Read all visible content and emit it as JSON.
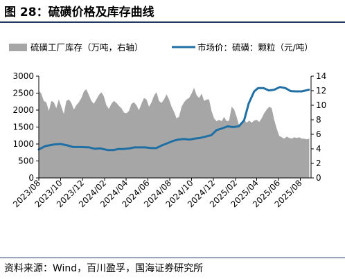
{
  "figure": {
    "title": "图 28：硫磺价格及库存曲线",
    "source": "资料来源：Wind，百川盈孚，国海证券研究所"
  },
  "colors": {
    "inventory_area": "#a6a6a6",
    "price_line": "#1f6fa4",
    "rule": "#1f3864"
  },
  "chart_data": {
    "type": "area",
    "legend_position": "top",
    "grid": false,
    "xlabel": "",
    "ylabel": "",
    "y_left": {
      "ylim": [
        0,
        3000
      ],
      "ticks": [
        "0",
        "500",
        "1000",
        "1500",
        "2000",
        "2500",
        "3000"
      ]
    },
    "y_right": {
      "ylim": [
        0,
        14
      ],
      "ticks": [
        "0",
        "2",
        "4",
        "6",
        "8",
        "10",
        "12",
        "14"
      ]
    },
    "x_range": [
      "2023-08-01",
      "2025-08-31"
    ],
    "x_tick_labels": [
      "2023/08",
      "2023/10",
      "2023/12",
      "2024/02",
      "2024/04",
      "2024/06",
      "2024/08",
      "2024/10",
      "2024/12",
      "2025/02",
      "2025/04",
      "2025/06",
      "2025/08"
    ],
    "series": [
      {
        "name": "硫磺工厂库存（万吨，右轴）",
        "type": "area",
        "axis": "right",
        "x": [
          "2023-08-01",
          "2023-08-08",
          "2023-08-15",
          "2023-08-22",
          "2023-08-29",
          "2023-09-05",
          "2023-09-12",
          "2023-09-19",
          "2023-09-26",
          "2023-10-03",
          "2023-10-10",
          "2023-10-17",
          "2023-10-24",
          "2023-10-31",
          "2023-11-07",
          "2023-11-14",
          "2023-11-21",
          "2023-11-28",
          "2023-12-05",
          "2023-12-12",
          "2023-12-19",
          "2023-12-26",
          "2024-01-02",
          "2024-01-09",
          "2024-01-16",
          "2024-01-23",
          "2024-01-30",
          "2024-02-06",
          "2024-02-13",
          "2024-02-20",
          "2024-02-27",
          "2024-03-05",
          "2024-03-12",
          "2024-03-19",
          "2024-03-26",
          "2024-04-02",
          "2024-04-09",
          "2024-04-16",
          "2024-04-23",
          "2024-04-30",
          "2024-05-07",
          "2024-05-14",
          "2024-05-21",
          "2024-05-28",
          "2024-06-04",
          "2024-06-11",
          "2024-06-18",
          "2024-06-25",
          "2024-07-02",
          "2024-07-09",
          "2024-07-16",
          "2024-07-23",
          "2024-07-30",
          "2024-08-06",
          "2024-08-13",
          "2024-08-20",
          "2024-08-27",
          "2024-09-03",
          "2024-09-10",
          "2024-09-17",
          "2024-09-24",
          "2024-10-01",
          "2024-10-08",
          "2024-10-15",
          "2024-10-22",
          "2024-10-29",
          "2024-11-05",
          "2024-11-12",
          "2024-11-19",
          "2024-11-26",
          "2024-12-03",
          "2024-12-10",
          "2024-12-17",
          "2024-12-24",
          "2024-12-31",
          "2025-01-07",
          "2025-01-14",
          "2025-01-21",
          "2025-01-28",
          "2025-02-04",
          "2025-02-11",
          "2025-02-18",
          "2025-02-25",
          "2025-03-04",
          "2025-03-11",
          "2025-03-18",
          "2025-03-25",
          "2025-04-01",
          "2025-04-08",
          "2025-04-15",
          "2025-04-22",
          "2025-04-29",
          "2025-05-06",
          "2025-05-13",
          "2025-05-20",
          "2025-05-27",
          "2025-06-03",
          "2025-06-10",
          "2025-06-17",
          "2025-06-24",
          "2025-07-01",
          "2025-07-08",
          "2025-07-15",
          "2025-07-22",
          "2025-07-29",
          "2025-08-05",
          "2025-08-12",
          "2025-08-19",
          "2025-08-26"
        ],
        "values": [
          12.0,
          11.6,
          10.6,
          10.4,
          9.2,
          10.6,
          10.4,
          9.6,
          10.8,
          9.8,
          8.8,
          10.6,
          10.8,
          10.3,
          9.4,
          10.0,
          10.4,
          11.0,
          11.9,
          12.2,
          11.4,
          10.6,
          10.2,
          10.8,
          11.4,
          11.8,
          11.2,
          10.0,
          9.5,
          10.2,
          10.6,
          10.3,
          9.9,
          9.6,
          9.0,
          8.9,
          9.2,
          10.2,
          10.4,
          10.0,
          9.3,
          10.2,
          11.0,
          10.8,
          9.8,
          10.4,
          11.3,
          11.8,
          10.6,
          10.3,
          10.8,
          11.5,
          10.8,
          9.8,
          9.1,
          8.2,
          8.4,
          9.8,
          10.4,
          10.8,
          11.0,
          11.6,
          12.4,
          11.4,
          11.0,
          11.6,
          10.6,
          10.8,
          10.8,
          9.2,
          8.2,
          7.8,
          8.0,
          7.8,
          8.4,
          7.8,
          7.9,
          9.8,
          9.4,
          8.4,
          7.2,
          7.4,
          8.0,
          7.6,
          7.9,
          7.6,
          7.9,
          8.0,
          7.7,
          8.2,
          8.9,
          9.4,
          9.8,
          9.6,
          8.0,
          6.8,
          5.8,
          5.6,
          5.4,
          5.7,
          5.5,
          5.4,
          5.6,
          5.5,
          5.6,
          5.4,
          5.4,
          5.3,
          5.4
        ]
      },
      {
        "name": "市场价：硫磺：颗粒（元/吨）",
        "type": "line",
        "axis": "left",
        "x": [
          "2023-08-01",
          "2023-08-20",
          "2023-09-15",
          "2023-10-01",
          "2023-10-20",
          "2023-11-05",
          "2023-11-25",
          "2023-12-20",
          "2024-01-05",
          "2024-01-20",
          "2024-02-10",
          "2024-02-25",
          "2024-03-10",
          "2024-03-25",
          "2024-04-10",
          "2024-04-25",
          "2024-05-10",
          "2024-05-25",
          "2024-06-10",
          "2024-06-25",
          "2024-07-10",
          "2024-07-25",
          "2024-08-10",
          "2024-08-25",
          "2024-09-10",
          "2024-09-25",
          "2024-10-10",
          "2024-10-25",
          "2024-11-10",
          "2024-11-25",
          "2024-12-10",
          "2024-12-25",
          "2025-01-10",
          "2025-01-25",
          "2025-02-10",
          "2025-02-25",
          "2025-03-10",
          "2025-03-25",
          "2025-04-05",
          "2025-04-20",
          "2025-05-05",
          "2025-05-20",
          "2025-06-05",
          "2025-06-20",
          "2025-07-05",
          "2025-07-20",
          "2025-08-05",
          "2025-08-25"
        ],
        "values": [
          840,
          940,
          990,
          1000,
          960,
          910,
          910,
          900,
          860,
          870,
          820,
          820,
          850,
          850,
          870,
          900,
          900,
          900,
          880,
          880,
          960,
          1020,
          1090,
          1130,
          1150,
          1130,
          1160,
          1180,
          1220,
          1260,
          1410,
          1460,
          1520,
          1500,
          1520,
          1700,
          2200,
          2550,
          2650,
          2650,
          2580,
          2600,
          2680,
          2650,
          2560,
          2550,
          2550,
          2600
        ]
      }
    ]
  }
}
